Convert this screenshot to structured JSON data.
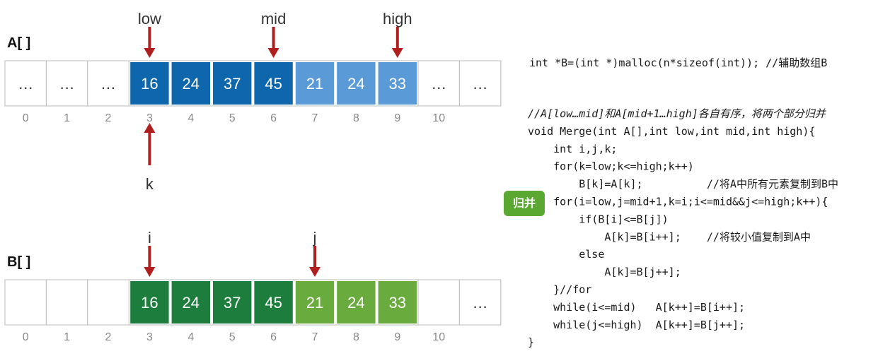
{
  "arrays": [
    {
      "name": "A[ ]",
      "cells": [
        {
          "text": "…",
          "color": "#ffffff"
        },
        {
          "text": "…",
          "color": "#ffffff"
        },
        {
          "text": "…",
          "color": "#ffffff"
        },
        {
          "text": "16",
          "color": "#0e66ad"
        },
        {
          "text": "24",
          "color": "#0e66ad"
        },
        {
          "text": "37",
          "color": "#0e66ad"
        },
        {
          "text": "45",
          "color": "#0e66ad"
        },
        {
          "text": "21",
          "color": "#5a9ad6"
        },
        {
          "text": "24",
          "color": "#5a9ad6"
        },
        {
          "text": "33",
          "color": "#5a9ad6"
        },
        {
          "text": "…",
          "color": "#ffffff"
        },
        {
          "text": "…",
          "color": "#ffffff"
        }
      ],
      "indices": [
        0,
        1,
        2,
        3,
        4,
        5,
        6,
        7,
        8,
        9,
        10
      ],
      "pointers": [
        {
          "label": "low",
          "cell": 3,
          "dir": "down"
        },
        {
          "label": "mid",
          "cell": 6,
          "dir": "down"
        },
        {
          "label": "high",
          "cell": 9,
          "dir": "down"
        },
        {
          "label": "k",
          "cell": 3,
          "dir": "up"
        }
      ]
    },
    {
      "name": "B[ ]",
      "cells": [
        {
          "color": "#ffffff"
        },
        {
          "color": "#ffffff"
        },
        {
          "color": "#ffffff"
        },
        {
          "text": "16",
          "color": "#1d7d3c"
        },
        {
          "text": "24",
          "color": "#1d7d3c"
        },
        {
          "text": "37",
          "color": "#1d7d3c"
        },
        {
          "text": "45",
          "color": "#1d7d3c"
        },
        {
          "text": "21",
          "color": "#6aab3d"
        },
        {
          "text": "24",
          "color": "#6aab3d"
        },
        {
          "text": "33",
          "color": "#6aab3d"
        },
        {
          "color": "#ffffff"
        },
        {
          "text": "…",
          "color": "#ffffff"
        }
      ],
      "indices": [
        0,
        1,
        2,
        3,
        4,
        5,
        6,
        7,
        8,
        9,
        10
      ],
      "pointers": [
        {
          "label": "i",
          "cell": 3,
          "dir": "down"
        },
        {
          "label": "j",
          "cell": 7,
          "dir": "down"
        }
      ]
    }
  ],
  "code": {
    "header": "int *B=(int *)malloc(n*sizeof(int)); //辅助数组B",
    "lines": [
      {
        "text": "//A[low…mid]和A[mid+1…high]各自有序，将两个部分归并",
        "comment": true
      },
      {
        "text": "void Merge(int A[],int low,int mid,int high){"
      },
      {
        "text": "    int i,j,k;"
      },
      {
        "text": "    for(k=low;k<=high;k++)"
      },
      {
        "text": "        B[k]=A[k];          //将A中所有元素复制到B中"
      },
      {
        "text": "    for(i=low,j=mid+1,k=i;i<=mid&&j<=high;k++){"
      },
      {
        "text": "        if(B[i]<=B[j])"
      },
      {
        "text": "            A[k]=B[i++];    //将较小值复制到A中"
      },
      {
        "text": "        else"
      },
      {
        "text": "            A[k]=B[j++];"
      },
      {
        "text": "    }//for"
      },
      {
        "text": "    while(i<=mid)   A[k++]=B[i++];"
      },
      {
        "text": "    while(j<=high)  A[k++]=B[j++];"
      },
      {
        "text": "}"
      }
    ]
  },
  "button": "归并"
}
